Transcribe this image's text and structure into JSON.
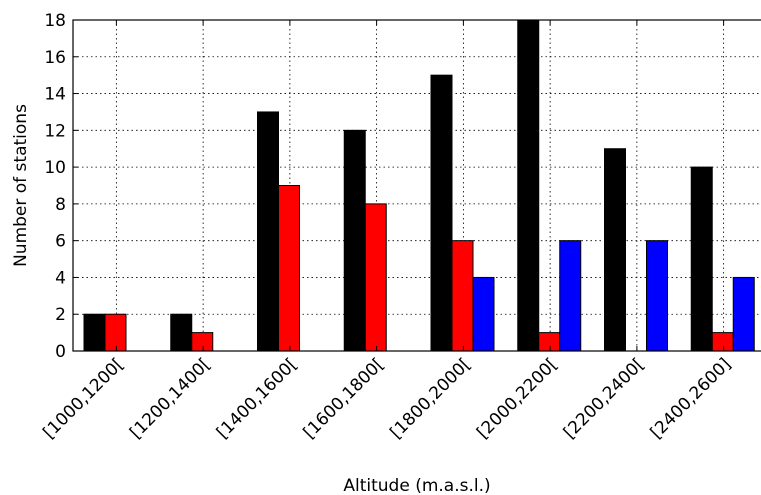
{
  "chart_data": {
    "type": "bar",
    "title": "",
    "xlabel": "Altitude (m.a.s.l.)",
    "ylabel": "Number of stations",
    "ylim": [
      0,
      18
    ],
    "yticks": [
      "0",
      "2",
      "4",
      "6",
      "8",
      "10",
      "12",
      "14",
      "16",
      "18"
    ],
    "grid": true,
    "legend": "none",
    "categories": [
      "[1000,1200[",
      "[1200,1400[",
      "[1400,1600[",
      "[1600,1800[",
      "[1800,2000[",
      "[2000,2200[",
      "[2200,2400[",
      "[2400,2600]"
    ],
    "series": [
      {
        "color": "#000000",
        "values": [
          2,
          2,
          13,
          12,
          15,
          18,
          11,
          10
        ]
      },
      {
        "color": "#ff0000",
        "values": [
          2,
          1,
          9,
          8,
          6,
          1,
          0,
          1
        ]
      },
      {
        "color": "#0000ff",
        "values": [
          0,
          0,
          0,
          0,
          4,
          6,
          6,
          4
        ]
      }
    ]
  }
}
